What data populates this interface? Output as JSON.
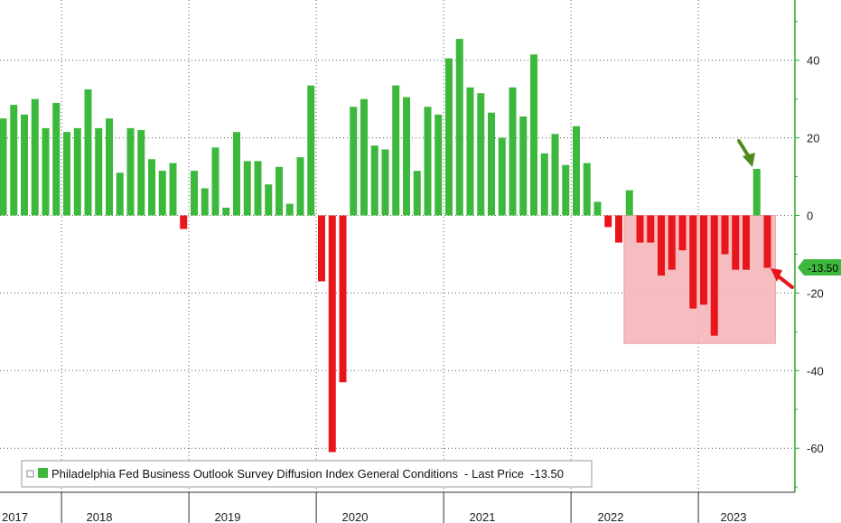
{
  "chart_data": {
    "type": "bar",
    "title": "",
    "xlabel": "",
    "ylabel": "",
    "ylim": [
      -72,
      55
    ],
    "y_ticks": [
      40,
      20,
      0,
      -20,
      -40,
      -60
    ],
    "y_tick_labels": [
      "40",
      "20",
      "0",
      "-20",
      "-40",
      "-60"
    ],
    "x_year_labels": [
      "2017",
      "2018",
      "2019",
      "2020",
      "2021",
      "2022",
      "2023"
    ],
    "series": [
      {
        "name": "Philadelphia Fed Business Outlook Survey Diffusion Index General Conditions",
        "start": "2017-07",
        "values": [
          25,
          28.5,
          26,
          30,
          22.5,
          29,
          21.5,
          22.5,
          32.5,
          22.5,
          25,
          11,
          22.5,
          22,
          14.5,
          11.5,
          13.5,
          -3.5,
          11.5,
          7,
          17.5,
          2,
          21.5,
          14,
          14,
          8,
          12.5,
          3,
          15,
          33.5,
          -17,
          -61,
          -43,
          28,
          30,
          18,
          17,
          33.5,
          30.5,
          11.5,
          28,
          26,
          40.5,
          45.5,
          33,
          31.5,
          26.5,
          20,
          33,
          25.5,
          41.5,
          16,
          21,
          13,
          23,
          13.5,
          3.5,
          -3,
          -7,
          6.5,
          -7,
          -7,
          -15.5,
          -14,
          -9,
          -24,
          -23,
          -31,
          -10,
          -14,
          -14,
          12,
          -13.5
        ]
      }
    ],
    "colors": {
      "positive": "#3cb83c",
      "negative": "#e8161a",
      "highlight_box": "#f4b2b6",
      "axis_green": "#2aa82a"
    },
    "last_value_badge": "-13.50",
    "legend": {
      "text": "Philadelphia Fed Business Outlook Survey Diffusion Index General Conditions  - Last Price  -13.50",
      "placement": "bottom-left"
    },
    "annotations": [
      {
        "type": "arrow",
        "color": "#4e8a1c",
        "points_to": "2023-07"
      },
      {
        "type": "arrow",
        "color": "#e8161a",
        "points_to": "2023-08"
      },
      {
        "type": "shaded-box",
        "from": "2022-06",
        "to": "2023-08",
        "y_range": [
          -33,
          0
        ]
      }
    ],
    "grid": true
  }
}
